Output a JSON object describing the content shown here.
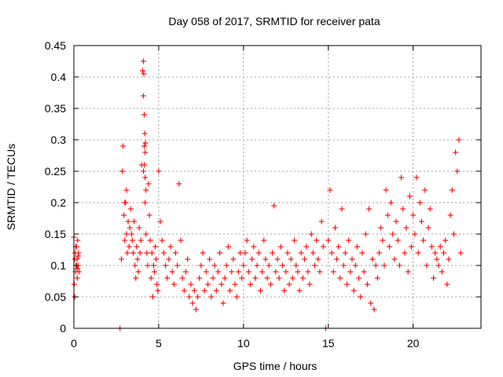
{
  "chart_data": {
    "type": "scatter",
    "title": "Day 058 of 2017, SRMTID for receiver pata",
    "xlabel": "GPS time / hours",
    "ylabel": "SRMTID / TECUs",
    "xlim": [
      0,
      24
    ],
    "ylim": [
      0,
      0.45
    ],
    "xticks": [
      "0",
      "5",
      "10",
      "15",
      "20"
    ],
    "yticks": [
      "0",
      "0.05",
      "0.1",
      "0.15",
      "0.2",
      "0.25",
      "0.3",
      "0.35",
      "0.4",
      "0.45"
    ],
    "xtick_values": [
      0,
      5,
      10,
      15,
      20
    ],
    "ytick_values": [
      0,
      0.05,
      0.1,
      0.15,
      0.2,
      0.25,
      0.3,
      0.35,
      0.4,
      0.45
    ],
    "grid": true,
    "marker": "plus",
    "color": "#ff0000",
    "series": [
      {
        "name": "SRMTID",
        "x": [
          0.0,
          0.05,
          0.08,
          0.1,
          0.12,
          0.15,
          0.18,
          0.2,
          0.22,
          0.25,
          0.28,
          0.3,
          0.02,
          0.06,
          0.11,
          0.16,
          0.21,
          0.26,
          2.8,
          2.85,
          2.9,
          2.95,
          3.0,
          3.05,
          3.1,
          3.15,
          3.2,
          3.25,
          3.3,
          3.35,
          3.4,
          3.45,
          3.5,
          3.55,
          3.6,
          3.65,
          3.7,
          3.75,
          3.8,
          3.85,
          3.9,
          3.95,
          4.0,
          4.05,
          4.1,
          4.15,
          4.2,
          4.25,
          4.3,
          4.35,
          4.4,
          4.45,
          4.5,
          4.55,
          4.6,
          4.65,
          4.7,
          4.75,
          4.8,
          4.85,
          4.9,
          4.95,
          4.1,
          4.12,
          4.15,
          4.18,
          4.2,
          4.22,
          4.25,
          4.1,
          4.15,
          4.2,
          3.0,
          3.1,
          5.0,
          5.1,
          5.2,
          5.3,
          5.4,
          5.5,
          5.6,
          5.7,
          5.8,
          5.9,
          6.0,
          6.1,
          6.2,
          6.3,
          6.4,
          6.5,
          6.6,
          6.7,
          6.8,
          6.9,
          7.0,
          7.1,
          7.2,
          7.3,
          7.4,
          7.5,
          7.6,
          7.7,
          7.8,
          7.9,
          8.0,
          8.1,
          8.2,
          8.3,
          8.4,
          8.5,
          8.6,
          8.7,
          8.8,
          8.9,
          9.0,
          9.1,
          9.2,
          9.3,
          9.4,
          9.5,
          9.6,
          9.7,
          9.8,
          9.9,
          10.0,
          10.1,
          10.2,
          10.3,
          10.4,
          10.5,
          10.6,
          10.7,
          10.8,
          10.9,
          11.0,
          11.1,
          11.2,
          11.3,
          11.4,
          11.5,
          11.6,
          11.7,
          11.8,
          11.9,
          12.0,
          12.1,
          12.2,
          12.3,
          12.4,
          12.5,
          12.6,
          12.7,
          12.8,
          12.9,
          13.0,
          13.1,
          13.2,
          13.3,
          13.4,
          13.5,
          13.6,
          13.7,
          13.8,
          13.9,
          14.0,
          14.1,
          14.2,
          14.3,
          14.4,
          14.5,
          14.6,
          14.7,
          15.0,
          15.1,
          15.2,
          15.3,
          15.4,
          15.5,
          15.6,
          15.7,
          15.8,
          15.9,
          16.0,
          16.1,
          16.2,
          16.3,
          16.4,
          16.5,
          16.6,
          16.7,
          16.8,
          16.9,
          17.0,
          17.1,
          17.2,
          17.3,
          17.4,
          17.5,
          17.6,
          17.7,
          17.8,
          17.9,
          18.0,
          18.1,
          18.2,
          18.3,
          18.4,
          18.5,
          18.6,
          18.7,
          18.8,
          18.9,
          19.0,
          19.1,
          19.2,
          19.3,
          19.4,
          19.5,
          19.6,
          19.7,
          19.8,
          19.9,
          20.0,
          20.1,
          20.2,
          20.3,
          20.4,
          20.5,
          20.6,
          20.7,
          20.8,
          20.9,
          21.0,
          21.1,
          21.2,
          21.3,
          21.4,
          21.5,
          21.6,
          21.7,
          21.8,
          21.9,
          22.0,
          22.1,
          22.2,
          22.3,
          22.4,
          22.5,
          22.6,
          22.7,
          22.8,
          2.72,
          14.85
        ],
        "y": [
          0.145,
          0.05,
          0.12,
          0.09,
          0.1,
          0.13,
          0.11,
          0.08,
          0.14,
          0.1,
          0.12,
          0.09,
          0.07,
          0.11,
          0.13,
          0.1,
          0.095,
          0.115,
          0.11,
          0.25,
          0.29,
          0.18,
          0.14,
          0.2,
          0.15,
          0.12,
          0.17,
          0.13,
          0.16,
          0.19,
          0.15,
          0.14,
          0.12,
          0.17,
          0.1,
          0.08,
          0.13,
          0.11,
          0.09,
          0.16,
          0.12,
          0.14,
          0.26,
          0.41,
          0.37,
          0.29,
          0.2,
          0.15,
          0.12,
          0.1,
          0.23,
          0.18,
          0.14,
          0.08,
          0.12,
          0.05,
          0.1,
          0.09,
          0.13,
          0.11,
          0.07,
          0.06,
          0.425,
          0.405,
          0.34,
          0.31,
          0.28,
          0.295,
          0.22,
          0.25,
          0.26,
          0.24,
          0.2,
          0.22,
          0.25,
          0.17,
          0.14,
          0.12,
          0.1,
          0.08,
          0.11,
          0.13,
          0.09,
          0.07,
          0.12,
          0.1,
          0.23,
          0.14,
          0.08,
          0.06,
          0.09,
          0.11,
          0.05,
          0.07,
          0.04,
          0.06,
          0.03,
          0.05,
          0.08,
          0.1,
          0.12,
          0.06,
          0.09,
          0.07,
          0.11,
          0.05,
          0.08,
          0.1,
          0.06,
          0.09,
          0.12,
          0.07,
          0.04,
          0.08,
          0.1,
          0.13,
          0.06,
          0.09,
          0.11,
          0.07,
          0.05,
          0.09,
          0.12,
          0.08,
          0.1,
          0.12,
          0.14,
          0.09,
          0.07,
          0.11,
          0.13,
          0.08,
          0.1,
          0.12,
          0.06,
          0.09,
          0.14,
          0.11,
          0.08,
          0.1,
          0.07,
          0.12,
          0.195,
          0.09,
          0.11,
          0.08,
          0.13,
          0.1,
          0.06,
          0.09,
          0.12,
          0.07,
          0.11,
          0.08,
          0.14,
          0.1,
          0.09,
          0.06,
          0.12,
          0.08,
          0.11,
          0.13,
          0.09,
          0.07,
          0.15,
          0.12,
          0.1,
          0.14,
          0.11,
          0.09,
          0.17,
          0.13,
          0.14,
          0.22,
          0.12,
          0.09,
          0.16,
          0.11,
          0.13,
          0.08,
          0.19,
          0.1,
          0.12,
          0.07,
          0.14,
          0.09,
          0.11,
          0.06,
          0.1,
          0.13,
          0.08,
          0.05,
          0.12,
          0.09,
          0.15,
          0.07,
          0.19,
          0.04,
          0.11,
          0.03,
          0.1,
          0.08,
          0.12,
          0.16,
          0.14,
          0.1,
          0.22,
          0.18,
          0.13,
          0.2,
          0.15,
          0.11,
          0.17,
          0.14,
          0.1,
          0.24,
          0.19,
          0.12,
          0.16,
          0.09,
          0.21,
          0.13,
          0.18,
          0.15,
          0.24,
          0.12,
          0.2,
          0.17,
          0.14,
          0.22,
          0.1,
          0.16,
          0.19,
          0.13,
          0.08,
          0.12,
          0.11,
          0.1,
          0.13,
          0.09,
          0.12,
          0.14,
          0.07,
          0.11,
          0.18,
          0.22,
          0.15,
          0.28,
          0.25,
          0.3,
          0.12,
          0.0,
          0.0
        ]
      }
    ]
  }
}
